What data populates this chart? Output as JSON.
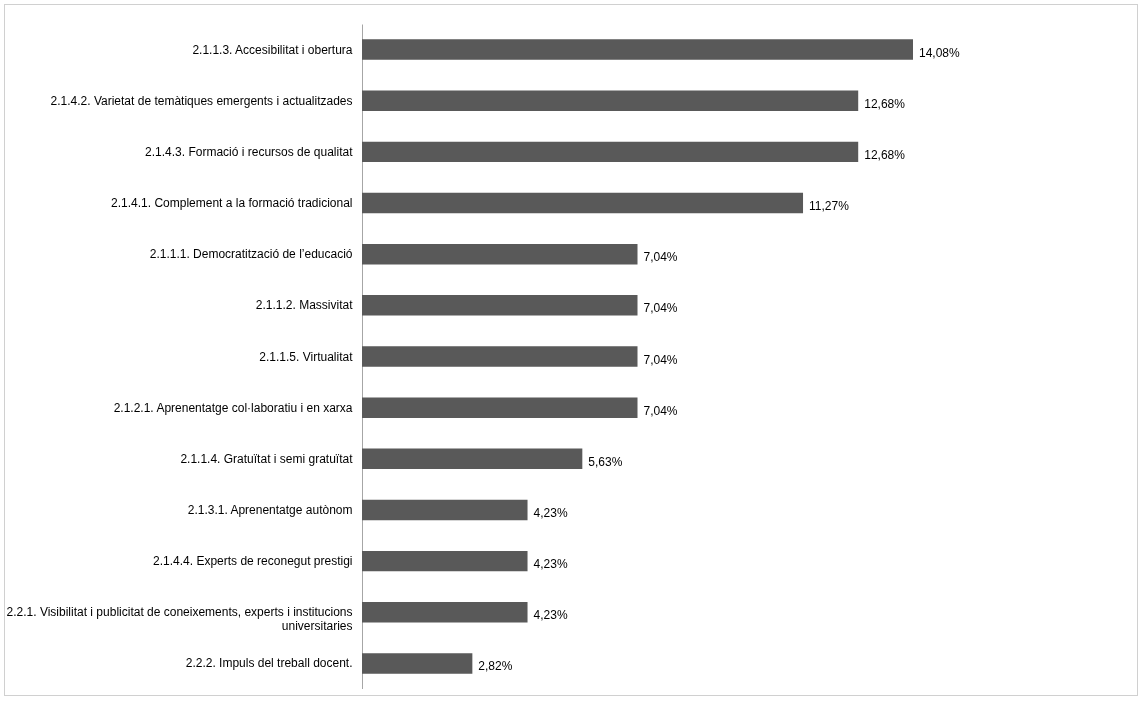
{
  "chart_data": {
    "type": "bar",
    "orientation": "horizontal",
    "categories": [
      "2.1.1.3. Accesibilitat i obertura",
      "2.1.4.2. Varietat de temàtiques emergents i actualitzades",
      "2.1.4.3. Formació i recursos de qualitat",
      "2.1.4.1. Complement a la formació tradicional",
      "2.1.1.1. Democratització de l’educació",
      "2.1.1.2. Massivitat",
      "2.1.1.5. Virtualitat",
      "2.1.2.1. Aprenentatge col·laboratiu i en xarxa",
      "2.1.1.4. Gratuïtat  i semi gratuïtat",
      "2.1.3.1. Aprenentatge autònom",
      "2.1.4.4. Experts de reconegut prestigi",
      "2.2.1. Visibilitat i publicitat de coneixements, experts i institucions universitaries",
      "2.2.2. Impuls del treball docent."
    ],
    "values": [
      14.08,
      12.68,
      12.68,
      11.27,
      7.04,
      7.04,
      7.04,
      7.04,
      5.63,
      4.23,
      4.23,
      4.23,
      2.82
    ],
    "value_labels": [
      "14,08%",
      "12,68%",
      "12,68%",
      "11,27%",
      "7,04%",
      "7,04%",
      "7,04%",
      "7,04%",
      "5,63%",
      "4,23%",
      "4,23%",
      "4,23%",
      "2,82%"
    ],
    "color": "#595959",
    "tick_labels": "y"
  }
}
